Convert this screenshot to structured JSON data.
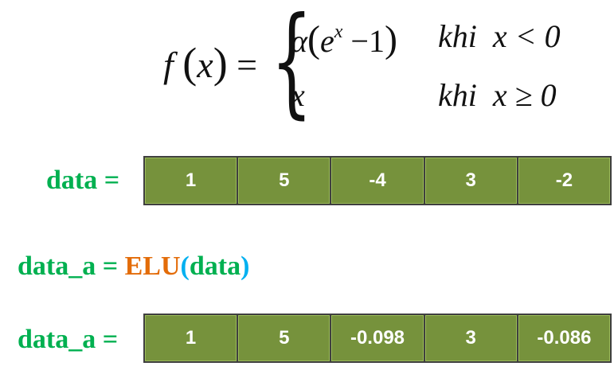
{
  "formula": {
    "lhs_f": "f",
    "lhs_x": "x",
    "equals": "=",
    "alpha": "α",
    "e": "e",
    "exp": "x",
    "minus_one": "−1",
    "khi1": "khi",
    "cond1": "x < 0",
    "x": "x",
    "khi2": "khi",
    "cond2": "x ≥ 0"
  },
  "data_label": "data =",
  "data_values": [
    "1",
    "5",
    "-4",
    "3",
    "-2"
  ],
  "assign": {
    "lhs": "data_a = ",
    "func": "ELU",
    "open": "(",
    "arg": "data",
    "close": ")"
  },
  "result_label": "data_a =",
  "result_values": [
    "1",
    "5",
    "-0.098",
    "3",
    "-0.086"
  ],
  "colors": {
    "label": "#00b050",
    "function": "#e36c09",
    "paren": "#00b0f0",
    "cell": "#76923c",
    "cell_text": "#ffffff"
  }
}
